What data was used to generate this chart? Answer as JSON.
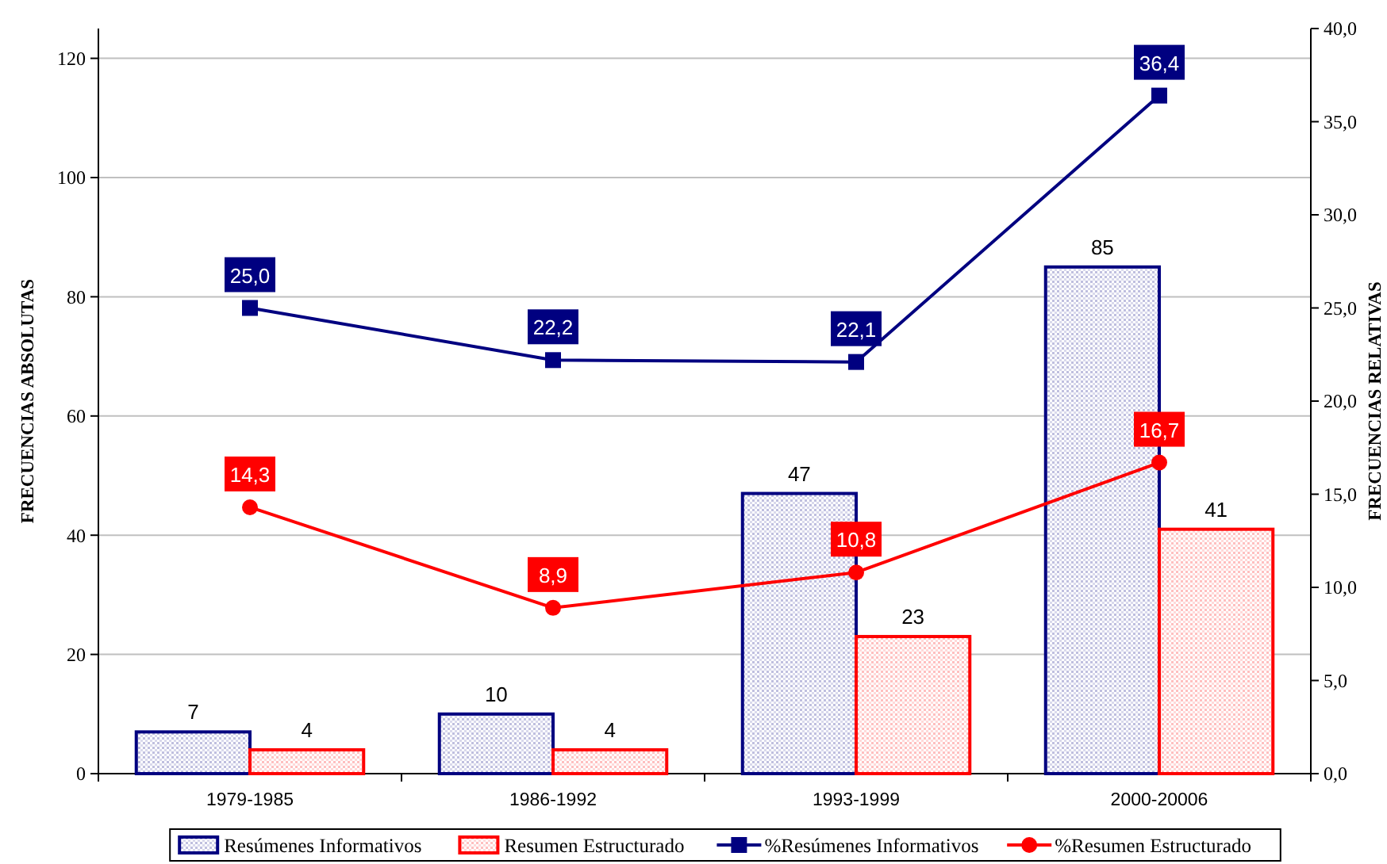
{
  "chart_data": {
    "type": "bar",
    "ylabel": "FRECUENCIAS ABSOLUTAS",
    "y2label": "FRECUENCIAS RELATIVAS",
    "categories": [
      "1979-1985",
      "1986-1992",
      "1993-1999",
      "2000-20006"
    ],
    "series": [
      {
        "name": "Resúmenes Informativos",
        "color": "#000080",
        "values": [
          7,
          10,
          47,
          85
        ],
        "value_labels": [
          "7",
          "10",
          "47",
          "85"
        ]
      },
      {
        "name": "Resumen Estructurado",
        "color": "#ff0000",
        "values": [
          4,
          4,
          23,
          41
        ],
        "value_labels": [
          "4",
          "4",
          "23",
          "41"
        ]
      },
      {
        "name": "%Resúmenes Informativos",
        "type": "line",
        "axis": "y2",
        "marker": "square",
        "color": "#000080",
        "values": [
          25.0,
          22.2,
          22.1,
          36.4
        ],
        "value_labels": [
          "25,0",
          "22,2",
          "22,1",
          "36,4"
        ]
      },
      {
        "name": "%Resumen Estructurado",
        "type": "line",
        "axis": "y2",
        "marker": "circle",
        "color": "#ff0000",
        "values": [
          14.3,
          8.9,
          10.8,
          16.7
        ],
        "value_labels": [
          "14,3",
          "8,9",
          "10,8",
          "16,7"
        ]
      }
    ],
    "ylim": [
      0,
      125
    ],
    "yticks": [
      0,
      20,
      40,
      60,
      80,
      100,
      120
    ],
    "y2lim": [
      0,
      40
    ],
    "y2ticks": [
      {
        "value": 0,
        "label": "0,0"
      },
      {
        "value": 5,
        "label": "5,0"
      },
      {
        "value": 10,
        "label": "10,0"
      },
      {
        "value": 15,
        "label": "15,0"
      },
      {
        "value": 20,
        "label": "20,0"
      },
      {
        "value": 25,
        "label": "25,0"
      },
      {
        "value": 30,
        "label": "30,0"
      },
      {
        "value": 35,
        "label": "35,0"
      },
      {
        "value": 40,
        "label": "40,0"
      }
    ],
    "grid": "y",
    "legend": "bottom"
  }
}
